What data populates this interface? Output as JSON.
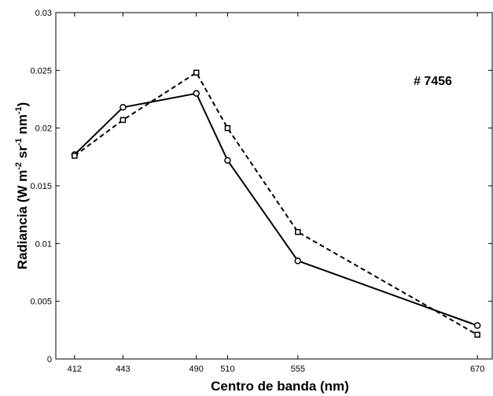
{
  "chart_data": {
    "type": "line",
    "xlabel": "Centro de banda (nm)",
    "ylabel": {
      "main": "Radiancia (W m",
      "exp1": "-2",
      "mid1": " sr",
      "exp2": "-1",
      "mid2": " nm",
      "exp3": "-1",
      "end": ")"
    },
    "annotation": "# 7456",
    "xlim": [
      400,
      680
    ],
    "ylim": [
      0,
      0.03
    ],
    "x_ticks": [
      412,
      443,
      490,
      510,
      555,
      670
    ],
    "y_ticks": [
      0,
      0.005,
      0.01,
      0.015,
      0.02,
      0.025,
      0.03
    ],
    "y_tick_labels": [
      "0",
      "0.005",
      "0.01",
      "0.015",
      "0.02",
      "0.025",
      "0.03"
    ],
    "grid": false,
    "series": [
      {
        "style": "solid",
        "marker": "circle",
        "x": [
          412,
          443,
          490,
          510,
          555,
          670
        ],
        "y": [
          0.0177,
          0.0218,
          0.023,
          0.0172,
          0.0085,
          0.0029
        ]
      },
      {
        "style": "dashed",
        "marker": "square",
        "x": [
          412,
          443,
          490,
          510,
          555,
          670
        ],
        "y": [
          0.0176,
          0.0207,
          0.0248,
          0.02,
          0.011,
          0.0021
        ]
      }
    ]
  }
}
